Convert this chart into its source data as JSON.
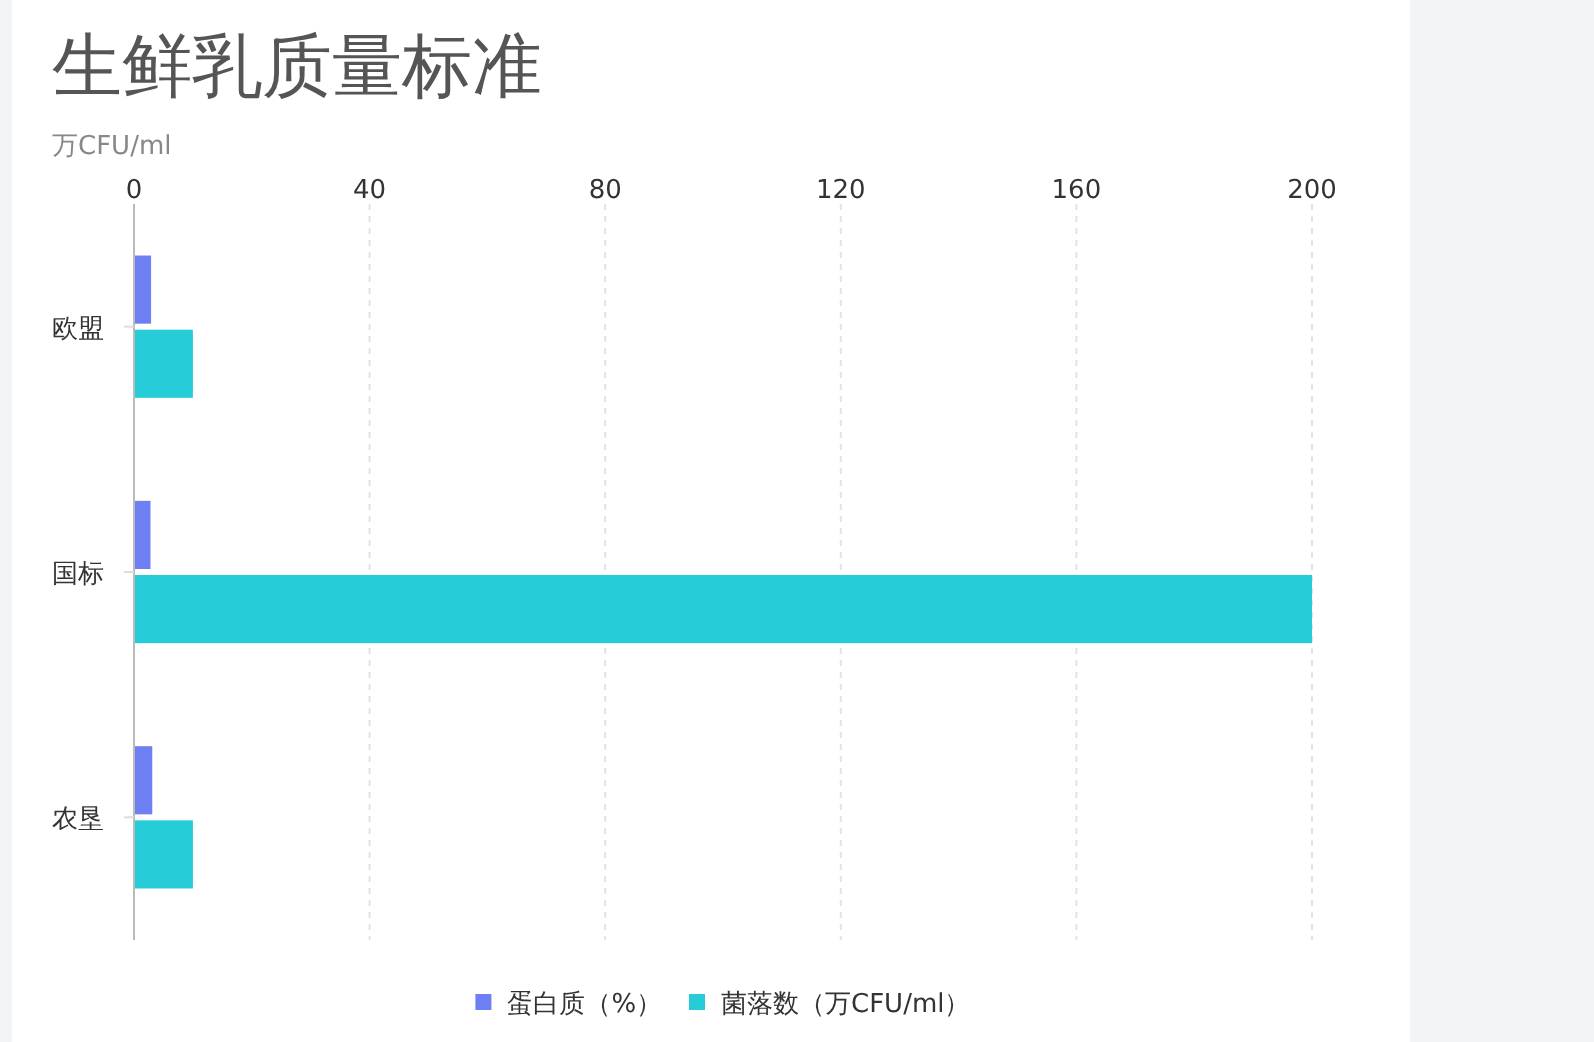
{
  "chart_data": {
    "type": "bar",
    "orientation": "horizontal",
    "title": "生鲜乳质量标准",
    "xlabel": "万CFU/ml",
    "categories": [
      "欧盟",
      "国标",
      "农垦"
    ],
    "series": [
      {
        "name": "蛋白质（%）",
        "color": "#6e7ff3",
        "values": [
          2.9,
          2.8,
          3.1
        ]
      },
      {
        "name": "菌落数（万CFU/ml）",
        "color": "#26cdd9",
        "values": [
          10,
          200,
          10
        ]
      }
    ],
    "xlim": [
      0,
      200
    ],
    "xticks": [
      0,
      40,
      80,
      120,
      160,
      200
    ],
    "grid": "x",
    "legend": "bottom"
  }
}
